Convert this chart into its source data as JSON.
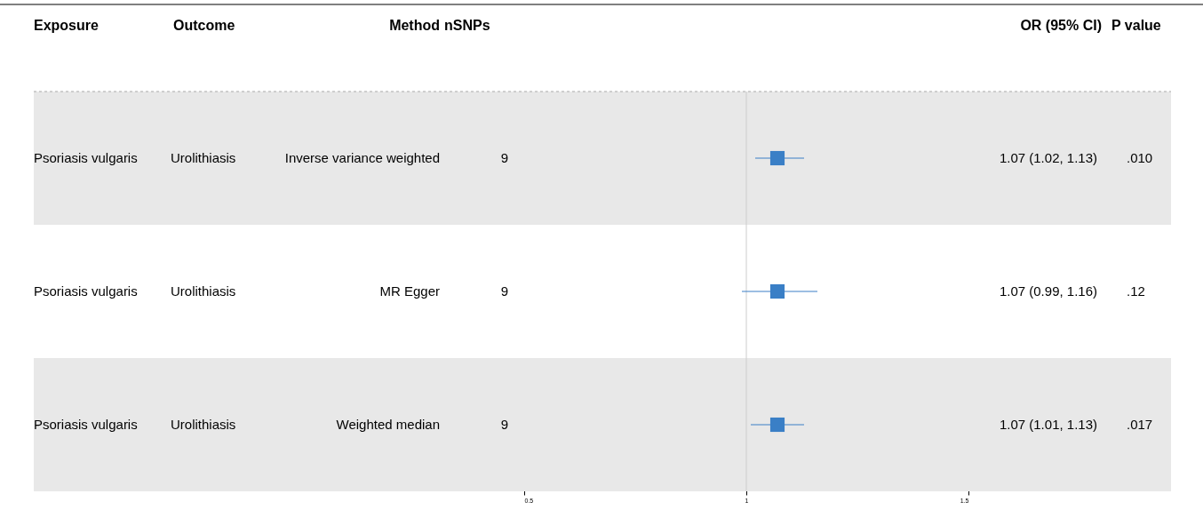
{
  "chart_data": {
    "type": "scatter",
    "orientation": "horizontal",
    "categories": [
      "Inverse variance weighted",
      "MR Egger",
      "Weighted median"
    ],
    "values": [
      1.07,
      1.07,
      1.07
    ],
    "errors": [
      [
        1.02,
        1.13
      ],
      [
        0.99,
        1.16
      ],
      [
        1.01,
        1.13
      ]
    ],
    "value_labels": [
      "1.07 (1.02, 1.13)",
      "1.07 (0.99, 1.16)",
      "1.07 (1.01, 1.13)"
    ],
    "color": "#3a7fc6",
    "marker": "square",
    "xlim": [
      0.5,
      1.5
    ],
    "xticks": [
      0.5,
      1,
      1.5
    ],
    "ref_lines": [
      {
        "axis": "x",
        "value": 1,
        "color": "#cccccc"
      }
    ],
    "annotations": [
      "Exposure",
      "Outcome",
      "Method",
      "nSNPs",
      "OR (95% CI)",
      "P value",
      "Psoriasis vulgaris",
      "Urolithiasis",
      "9",
      ".010",
      "Psoriasis vulgaris",
      "Urolithiasis",
      "9",
      ".12",
      "Psoriasis vulgaris",
      "Urolithiasis",
      "9",
      ".017"
    ],
    "grid": false
  }
}
